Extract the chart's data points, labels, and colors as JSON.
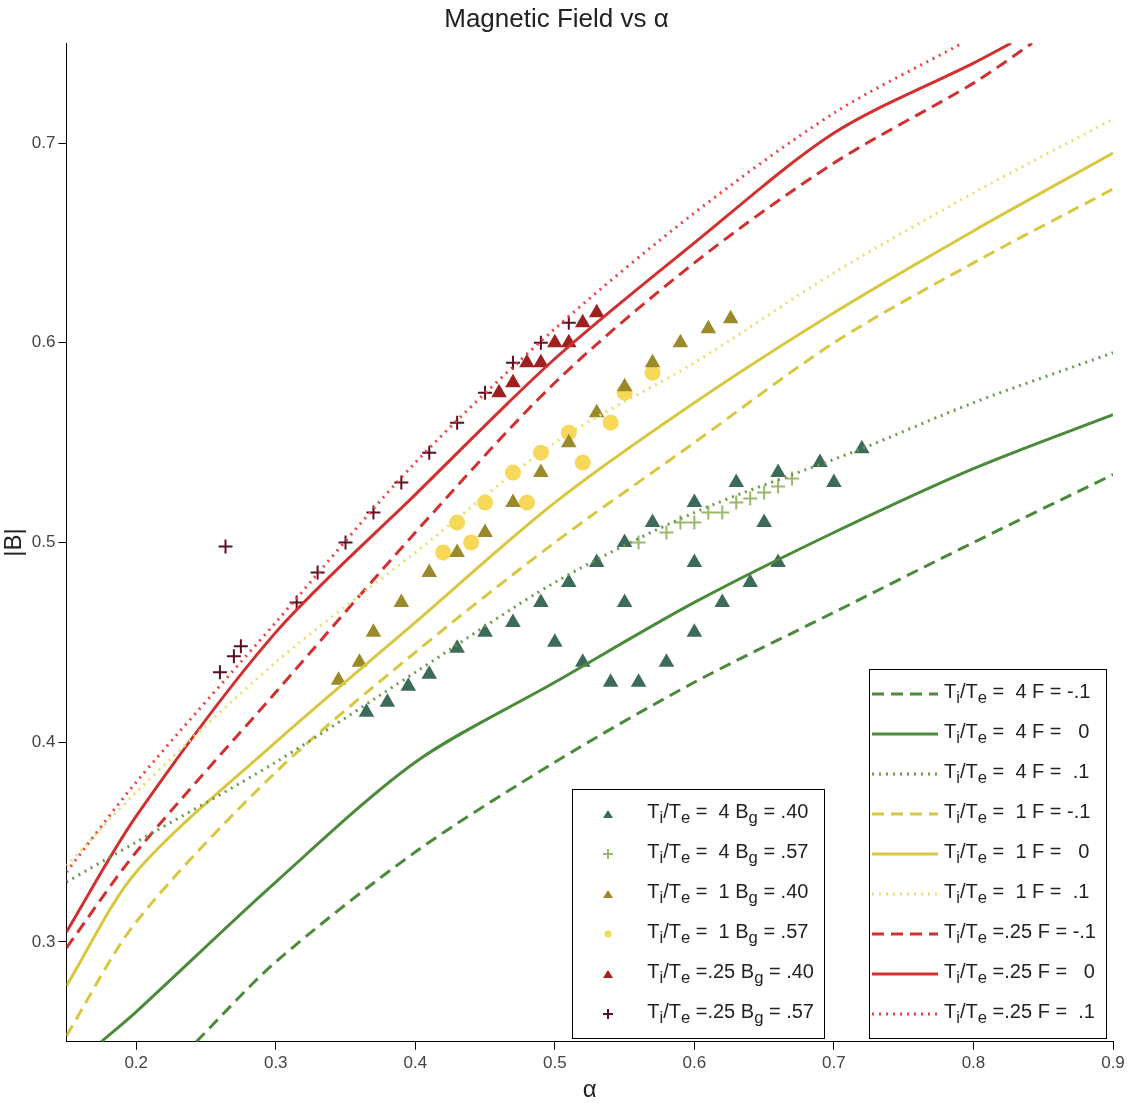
{
  "chart_data": {
    "type": "scatter",
    "title": "Magnetic Field vs α",
    "xlabel": "α",
    "ylabel": "|B|",
    "xlim": [
      0.15,
      0.9
    ],
    "xticks": [
      0.2,
      0.3,
      0.4,
      0.5,
      0.6,
      0.7,
      0.8,
      0.9
    ],
    "ylim": [
      0.25,
      0.75
    ],
    "yticks": [
      0.3,
      0.4,
      0.5,
      0.6,
      0.7
    ],
    "grid": false,
    "legend": "bottom right",
    "series": [
      {
        "name": "T$_{i}$/T$_{e}$ =  4 B$_{g}$ = .40",
        "marker": "triangle",
        "color": "#3d6b5a",
        "x": [
          0.365,
          0.38,
          0.395,
          0.41,
          0.43,
          0.45,
          0.47,
          0.49,
          0.51,
          0.53,
          0.55,
          0.57,
          0.6,
          0.63,
          0.66,
          0.69,
          0.72,
          0.5,
          0.52,
          0.54,
          0.56,
          0.58,
          0.6,
          0.62,
          0.64,
          0.66,
          0.55,
          0.6,
          0.65,
          0.7
        ],
        "values": [
          0.415,
          0.42,
          0.428,
          0.434,
          0.447,
          0.455,
          0.46,
          0.47,
          0.48,
          0.49,
          0.5,
          0.51,
          0.52,
          0.53,
          0.535,
          0.54,
          0.547,
          0.45,
          0.44,
          0.43,
          0.43,
          0.44,
          0.455,
          0.47,
          0.48,
          0.49,
          0.47,
          0.49,
          0.51,
          0.53
        ]
      },
      {
        "name": "T$_{i}$/T$_{e}$ =  4 B$_{g}$ = .57",
        "marker": "cross",
        "color": "#9ab86a",
        "x": [
          0.56,
          0.58,
          0.59,
          0.6,
          0.61,
          0.62,
          0.63,
          0.64,
          0.65,
          0.66,
          0.67
        ],
        "values": [
          0.5,
          0.505,
          0.51,
          0.51,
          0.515,
          0.515,
          0.52,
          0.522,
          0.525,
          0.528,
          0.532
        ]
      },
      {
        "name": "T$_{i}$/T$_{e}$ =  1 B$_{g}$ = .40",
        "marker": "triangle",
        "color": "#9a8a2a",
        "x": [
          0.345,
          0.36,
          0.37,
          0.39,
          0.41,
          0.43,
          0.45,
          0.47,
          0.49,
          0.51,
          0.53,
          0.55,
          0.57,
          0.59,
          0.61,
          0.626
        ],
        "values": [
          0.431,
          0.44,
          0.455,
          0.47,
          0.485,
          0.495,
          0.505,
          0.52,
          0.535,
          0.55,
          0.565,
          0.578,
          0.59,
          0.6,
          0.607,
          0.612
        ]
      },
      {
        "name": "T$_{i}$/T$_{e}$ =  1 B$_{g}$ = .57",
        "marker": "circle",
        "color": "#f8d858",
        "x": [
          0.42,
          0.43,
          0.44,
          0.45,
          0.47,
          0.48,
          0.49,
          0.51,
          0.52,
          0.54,
          0.55,
          0.57
        ],
        "values": [
          0.495,
          0.51,
          0.5,
          0.52,
          0.535,
          0.52,
          0.545,
          0.555,
          0.54,
          0.56,
          0.575,
          0.585
        ]
      },
      {
        "name": "T$_{i}$/T$_{e}$ =.25 B$_{g}$ = .40",
        "marker": "triangle",
        "color": "#a02020",
        "x": [
          0.46,
          0.47,
          0.48,
          0.49,
          0.5,
          0.51,
          0.52,
          0.53
        ],
        "values": [
          0.575,
          0.58,
          0.59,
          0.59,
          0.6,
          0.6,
          0.61,
          0.615
        ]
      },
      {
        "name": "T$_{i}$/T$_{e}$ =.25 B$_{g}$ = .57",
        "marker": "cross",
        "color": "#5a1020",
        "x": [
          0.264,
          0.26,
          0.27,
          0.275,
          0.315,
          0.33,
          0.35,
          0.37,
          0.39,
          0.41,
          0.43,
          0.45,
          0.47,
          0.49,
          0.51
        ],
        "values": [
          0.498,
          0.435,
          0.443,
          0.448,
          0.47,
          0.485,
          0.5,
          0.515,
          0.53,
          0.545,
          0.56,
          0.575,
          0.59,
          0.6,
          0.61
        ]
      },
      {
        "name": "T$_{i}$/T$_{e}$ =  4 F = -.1",
        "type": "line",
        "line_style": "dashed",
        "color": "#4a8a3a",
        "x": [
          0.243,
          0.3,
          0.4,
          0.5,
          0.6,
          0.7,
          0.8,
          0.9
        ],
        "values": [
          0.25,
          0.29,
          0.345,
          0.39,
          0.43,
          0.465,
          0.5,
          0.534
        ]
      },
      {
        "name": "T$_{i}$/T$_{e}$ =  4 F =   0",
        "type": "line",
        "line_style": "solid",
        "color": "#4a8a3a",
        "x": [
          0.175,
          0.2,
          0.3,
          0.4,
          0.5,
          0.6,
          0.7,
          0.8,
          0.9
        ],
        "values": [
          0.25,
          0.265,
          0.33,
          0.39,
          0.43,
          0.47,
          0.505,
          0.537,
          0.564
        ]
      },
      {
        "name": "T$_{i}$/T$_{e}$ =  4 F =  .1",
        "type": "line",
        "line_style": "dotted",
        "color": "#6a9a4a",
        "x": [
          0.15,
          0.2,
          0.3,
          0.4,
          0.5,
          0.6,
          0.72,
          0.8,
          0.9
        ],
        "values": [
          0.33,
          0.35,
          0.39,
          0.435,
          0.48,
          0.515,
          0.547,
          0.57,
          0.595
        ]
      },
      {
        "name": "T$_{i}$/T$_{e}$ =  1 F = -.1",
        "type": "line",
        "line_style": "dashed",
        "color": "#d8c840",
        "x": [
          0.15,
          0.2,
          0.3,
          0.4,
          0.5,
          0.6,
          0.7,
          0.8,
          0.9
        ],
        "values": [
          0.253,
          0.31,
          0.385,
          0.445,
          0.5,
          0.55,
          0.6,
          0.64,
          0.677
        ]
      },
      {
        "name": "T$_{i}$/T$_{e}$ =  1 F =   0",
        "type": "line",
        "line_style": "solid",
        "color": "#d8c840",
        "x": [
          0.15,
          0.2,
          0.3,
          0.4,
          0.5,
          0.6,
          0.7,
          0.8,
          0.9
        ],
        "values": [
          0.278,
          0.335,
          0.4,
          0.46,
          0.52,
          0.57,
          0.615,
          0.656,
          0.695
        ]
      },
      {
        "name": "T$_{i}$/T$_{e}$ =  1 F =  .1",
        "type": "line",
        "line_style": "dotted",
        "color": "#e8e070",
        "x": [
          0.15,
          0.2,
          0.3,
          0.4,
          0.5,
          0.6,
          0.7,
          0.8,
          0.9
        ],
        "values": [
          0.338,
          0.375,
          0.44,
          0.495,
          0.55,
          0.59,
          0.635,
          0.675,
          0.712
        ]
      },
      {
        "name": "T$_{i}$/T$_{e}$ =.25 F = -.1",
        "type": "line",
        "line_style": "dashed",
        "color": "#d03030",
        "x": [
          0.15,
          0.2,
          0.3,
          0.4,
          0.5,
          0.6,
          0.7,
          0.8,
          0.842
        ],
        "values": [
          0.297,
          0.345,
          0.425,
          0.505,
          0.58,
          0.64,
          0.69,
          0.73,
          0.75
        ]
      },
      {
        "name": "T$_{i}$/T$_{e}$ =.25 F =   0",
        "type": "line",
        "line_style": "solid",
        "color": "#d03030",
        "x": [
          0.15,
          0.2,
          0.3,
          0.4,
          0.5,
          0.6,
          0.7,
          0.8,
          0.827
        ],
        "values": [
          0.305,
          0.363,
          0.455,
          0.524,
          0.592,
          0.65,
          0.705,
          0.74,
          0.75
        ]
      },
      {
        "name": "T$_{i}$/T$_{e}$ =.25 F =  .1",
        "type": "line",
        "line_style": "dotted",
        "color": "#f04040",
        "x": [
          0.15,
          0.2,
          0.3,
          0.4,
          0.5,
          0.6,
          0.7,
          0.792
        ],
        "values": [
          0.335,
          0.38,
          0.46,
          0.54,
          0.607,
          0.665,
          0.715,
          0.75
        ]
      }
    ]
  }
}
